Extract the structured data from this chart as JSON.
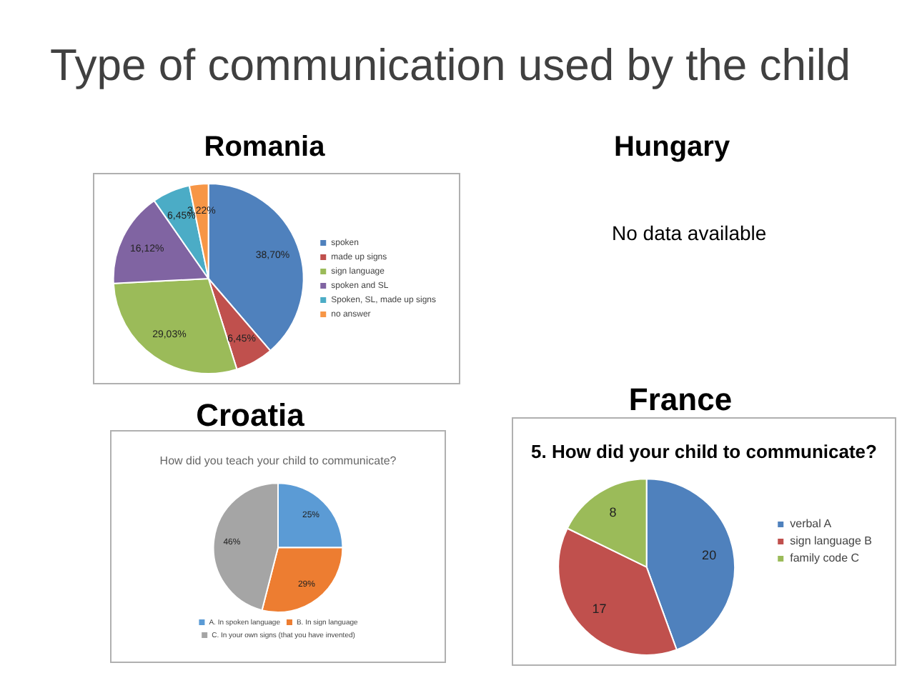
{
  "chart_data": [
    {
      "type": "other",
      "title": "Type of communication used by the child"
    },
    {
      "type": "pie",
      "title": "Romania",
      "categories": [
        "spoken",
        "made up signs",
        "sign language",
        "spoken and SL",
        "Spoken, SL, made up signs",
        "no answer"
      ],
      "values": [
        38.7,
        6.45,
        29.03,
        16.12,
        6.45,
        3.22
      ],
      "value_labels": [
        "38,70%",
        "6,45%",
        "29,03%",
        "16,12%",
        "6,45%",
        "3,22%"
      ],
      "colors": [
        "#4f81bd",
        "#c0504d",
        "#9bbb59",
        "#8064a2",
        "#4bacc6",
        "#f79646"
      ],
      "legend": "right"
    },
    {
      "type": "other",
      "title": "Hungary",
      "annotations": [
        "No data available"
      ]
    },
    {
      "type": "pie",
      "title": "Croatia",
      "subtitle": "How did you teach your child to communicate?",
      "categories": [
        "A. In spoken language",
        "B. In sign language",
        "C. In your own signs (that you have invented)"
      ],
      "values": [
        25,
        29,
        46
      ],
      "value_labels": [
        "25%",
        "29%",
        "46%"
      ],
      "colors": [
        "#5b9bd5",
        "#ed7d31",
        "#a5a5a5"
      ],
      "legend": "bottom"
    },
    {
      "type": "pie",
      "title": "France",
      "subtitle": "5. How did your child to communicate?",
      "categories": [
        "verbal A",
        "sign language B",
        "family code C"
      ],
      "values": [
        20,
        17,
        8
      ],
      "data_labels": true,
      "colors": [
        "#4f81bd",
        "#c0504d",
        "#9bbb59"
      ],
      "legend": "right"
    }
  ]
}
